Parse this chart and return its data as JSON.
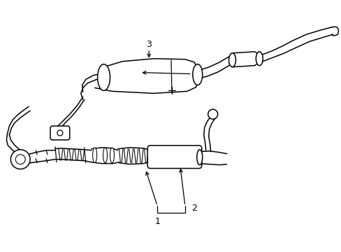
{
  "bg_color": "#ffffff",
  "line_color": "#000000",
  "lw": 1.1,
  "fig_width": 4.89,
  "fig_height": 3.6,
  "dpi": 100
}
